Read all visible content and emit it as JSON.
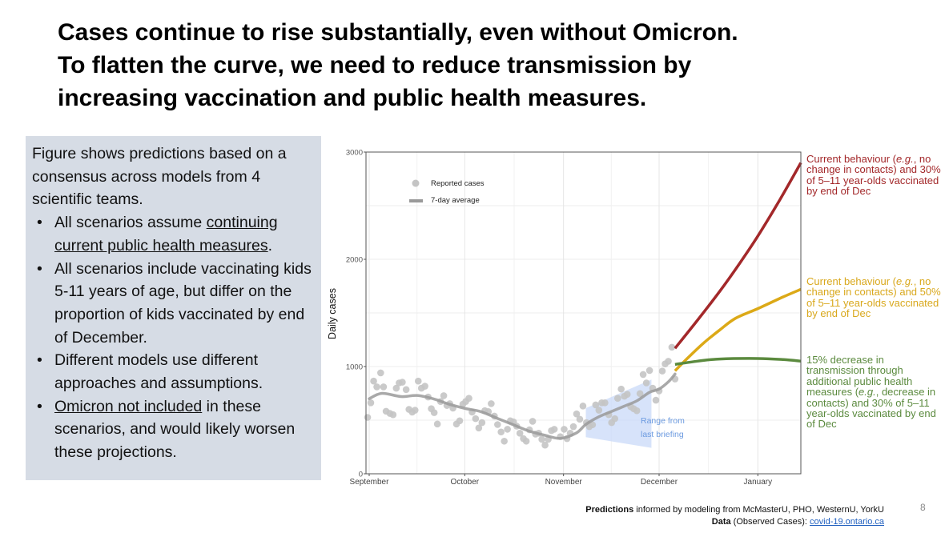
{
  "title": {
    "lines": [
      "Cases continue to rise substantially, even without Omicron.",
      "To flatten the curve, we need to reduce transmission by",
      "increasing vaccination and public health measures."
    ]
  },
  "notes": {
    "intro": "Figure shows predictions based on a consensus across models from 4 scientific teams.",
    "bullets": [
      {
        "pre": "All scenarios assume ",
        "underlined": "continuing current public health measures",
        "post": "."
      },
      {
        "pre": "All scenarios include vaccinating kids 5-11 years of age, but differ on the proportion of kids vaccinated by end of December.",
        "underlined": "",
        "post": ""
      },
      {
        "pre": "Different models use different approaches and assumptions.",
        "underlined": "",
        "post": ""
      },
      {
        "pre": "",
        "underlined": "Omicron not included",
        "post": " in these scenarios, and would likely worsen these projections."
      }
    ]
  },
  "annotations": {
    "red": {
      "pre": "Current behaviour (",
      "eg": "e.g.",
      "post": ", no change in contacts) and 30% of 5–11 year-olds vaccinated by end of Dec"
    },
    "yellow": {
      "pre": "Current behaviour (",
      "eg": "e.g.",
      "post": ", no change in contacts) and 50% of 5–11 year-olds vaccinated by end of Dec"
    },
    "green": {
      "pre": "15% decrease in transmission through additional public health measures (",
      "eg": "e.g.",
      "post": ", decrease in contacts) and 30% of 5–11 year-olds vaccinated by end of Dec"
    }
  },
  "footer": {
    "line1_bold": "Predictions",
    "line1_rest": " informed by modeling from McMasterU, PHO, WesternU, YorkU",
    "line2_bold": "Data",
    "line2_rest": " (Observed Cases): ",
    "link": "covid-19.ontario.ca"
  },
  "page_number": "8",
  "colors": {
    "red": "#a3282a",
    "yellow": "#dca917",
    "green": "#5b8a3e",
    "points": "#c4c4c4",
    "average": "#9a9a9a",
    "band": "#c9daf8",
    "band_text": "#6b9ae0"
  },
  "chart_data": {
    "type": "line",
    "xlabel": "",
    "ylabel": "Daily cases",
    "x_unit": "days since September 1",
    "xlim": [
      -1,
      135.5
    ],
    "ylim": [
      0,
      3000
    ],
    "yticks": [
      0,
      1000,
      2000,
      3000
    ],
    "ytick_labels": [
      "0",
      "1000",
      "2000",
      "3000"
    ],
    "xticks": [
      {
        "day": 0,
        "label": "September"
      },
      {
        "day": 30,
        "label": "October"
      },
      {
        "day": 61,
        "label": "November"
      },
      {
        "day": 91,
        "label": "December"
      },
      {
        "day": 122,
        "label": "January"
      }
    ],
    "grid": true,
    "legend": {
      "position": "top-left",
      "entries": [
        "Reported cases",
        "7-day average"
      ]
    },
    "band_label": [
      "Range from",
      "last briefing"
    ],
    "band": {
      "name": "Range from last briefing",
      "days": [
        68,
        88.6
      ],
      "lower": [
        341,
        242
      ],
      "upper": [
        612,
        879
      ]
    },
    "reported_cases": [
      [
        -0.5,
        526
      ],
      [
        0.5,
        662
      ],
      [
        1.4,
        864
      ],
      [
        2.4,
        810
      ],
      [
        3.6,
        941
      ],
      [
        4.5,
        810
      ],
      [
        5.3,
        583
      ],
      [
        6.5,
        563
      ],
      [
        7.5,
        551
      ],
      [
        8.5,
        798
      ],
      [
        9.4,
        847
      ],
      [
        10.4,
        854
      ],
      [
        11.6,
        785
      ],
      [
        12.5,
        600
      ],
      [
        13.5,
        575
      ],
      [
        14.4,
        593
      ],
      [
        15.4,
        864
      ],
      [
        16.4,
        798
      ],
      [
        17.5,
        817
      ],
      [
        18.5,
        716
      ],
      [
        19.5,
        607
      ],
      [
        20.4,
        570
      ],
      [
        21.4,
        464
      ],
      [
        22.4,
        674
      ],
      [
        23.4,
        728
      ],
      [
        24.4,
        637
      ],
      [
        25.3,
        654
      ],
      [
        26.3,
        612
      ],
      [
        27.4,
        464
      ],
      [
        28.4,
        494
      ],
      [
        29.4,
        649
      ],
      [
        30.3,
        674
      ],
      [
        31.3,
        704
      ],
      [
        32.3,
        575
      ],
      [
        33.4,
        514
      ],
      [
        34.4,
        427
      ],
      [
        35.4,
        477
      ],
      [
        36.3,
        588
      ],
      [
        37.4,
        580
      ],
      [
        38.3,
        654
      ],
      [
        39.3,
        538
      ],
      [
        40.3,
        459
      ],
      [
        41.4,
        390
      ],
      [
        42.4,
        304
      ],
      [
        43.4,
        415
      ],
      [
        44.3,
        494
      ],
      [
        45.3,
        484
      ],
      [
        46.3,
        444
      ],
      [
        47.3,
        378
      ],
      [
        48.4,
        328
      ],
      [
        49.3,
        304
      ],
      [
        50.3,
        410
      ],
      [
        51.3,
        489
      ],
      [
        52.2,
        370
      ],
      [
        53.2,
        378
      ],
      [
        54.2,
        321
      ],
      [
        55.2,
        267
      ],
      [
        56.2,
        321
      ],
      [
        57.2,
        402
      ],
      [
        58.1,
        415
      ],
      [
        60.0,
        346
      ],
      [
        61.2,
        415
      ],
      [
        62.1,
        328
      ],
      [
        63.1,
        378
      ],
      [
        64.1,
        440
      ],
      [
        65.1,
        558
      ],
      [
        66.1,
        509
      ],
      [
        67.1,
        632
      ],
      [
        68.2,
        477
      ],
      [
        69.1,
        440
      ],
      [
        70.1,
        457
      ],
      [
        71.1,
        642
      ],
      [
        72.1,
        593
      ],
      [
        73.0,
        662
      ],
      [
        74.0,
        662
      ],
      [
        75.2,
        551
      ],
      [
        76.1,
        477
      ],
      [
        77.1,
        514
      ],
      [
        78.0,
        704
      ],
      [
        79.1,
        790
      ],
      [
        80.1,
        723
      ],
      [
        81.0,
        741
      ],
      [
        82.1,
        625
      ],
      [
        83.0,
        607
      ],
      [
        84.0,
        588
      ],
      [
        85.0,
        748
      ],
      [
        86.0,
        926
      ],
      [
        87.0,
        847
      ],
      [
        88.0,
        963
      ],
      [
        89.0,
        798
      ],
      [
        90.0,
        686
      ],
      [
        91.0,
        773
      ],
      [
        92.0,
        958
      ],
      [
        92.9,
        1025
      ],
      [
        93.9,
        1049
      ],
      [
        95.0,
        1180
      ],
      [
        96.0,
        884
      ]
    ],
    "seven_day_average": [
      [
        0,
        700
      ],
      [
        4,
        750
      ],
      [
        10,
        720
      ],
      [
        15,
        730
      ],
      [
        20,
        700
      ],
      [
        25,
        650
      ],
      [
        30,
        610
      ],
      [
        35,
        580
      ],
      [
        40,
        520
      ],
      [
        45,
        460
      ],
      [
        50,
        400
      ],
      [
        55,
        360
      ],
      [
        60,
        330
      ],
      [
        65,
        380
      ],
      [
        68,
        460
      ],
      [
        72,
        530
      ],
      [
        76,
        580
      ],
      [
        80,
        630
      ],
      [
        84,
        680
      ],
      [
        88,
        760
      ],
      [
        91,
        790
      ],
      [
        94,
        860
      ],
      [
        96,
        930
      ]
    ],
    "series": [
      {
        "name": "Current behaviour, 30% of 5–11 vaccinated",
        "color_key": "red",
        "points": [
          [
            96,
            1170
          ],
          [
            103,
            1430
          ],
          [
            110,
            1700
          ],
          [
            116,
            1950
          ],
          [
            122,
            2217
          ],
          [
            129,
            2560
          ],
          [
            135.5,
            2900
          ]
        ]
      },
      {
        "name": "Current behaviour, 50% of 5–11 vaccinated",
        "color_key": "yellow",
        "points": [
          [
            96,
            960
          ],
          [
            100,
            1080
          ],
          [
            105,
            1220
          ],
          [
            110,
            1340
          ],
          [
            115,
            1450
          ],
          [
            122,
            1540
          ],
          [
            130,
            1650
          ],
          [
            135.5,
            1720
          ]
        ]
      },
      {
        "name": "15% decrease in transmission, 30% of 5–11 vaccinated",
        "color_key": "green",
        "points": [
          [
            96,
            1020
          ],
          [
            103,
            1050
          ],
          [
            110,
            1070
          ],
          [
            122,
            1075
          ],
          [
            130,
            1065
          ],
          [
            135.5,
            1050
          ]
        ]
      }
    ]
  }
}
